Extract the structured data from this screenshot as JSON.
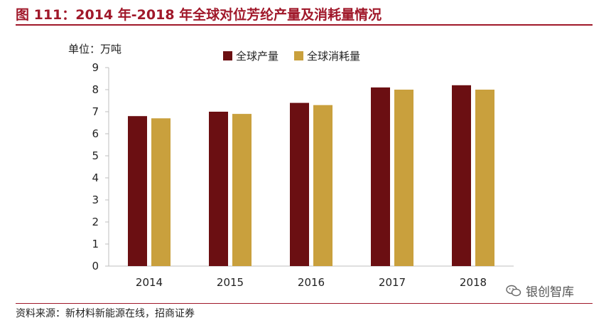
{
  "figure": {
    "title": "图 111：2014 年-2018 年全球对位芳纶产量及消耗量情况",
    "unit_label": "单位：万吨",
    "source": "资料来源：新材料新能源在线，招商证券",
    "watermark": "银创智库",
    "watermark_icon": "wechat-icon"
  },
  "colors": {
    "title": "#a0182a",
    "production": "#6b0f12",
    "consumption": "#c9a03d",
    "axis": "#bfbfbf"
  },
  "chart_data": {
    "type": "bar",
    "categories": [
      "2014",
      "2015",
      "2016",
      "2017",
      "2018"
    ],
    "series": [
      {
        "name": "全球产量",
        "values": [
          6.8,
          7.0,
          7.4,
          8.1,
          8.2
        ]
      },
      {
        "name": "全球消耗量",
        "values": [
          6.7,
          6.9,
          7.3,
          8.0,
          8.0
        ]
      }
    ],
    "ylim": [
      0,
      9
    ],
    "yticks": [
      0,
      1,
      2,
      3,
      4,
      5,
      6,
      7,
      8,
      9
    ],
    "grid": false,
    "legend_position": "top-center"
  }
}
